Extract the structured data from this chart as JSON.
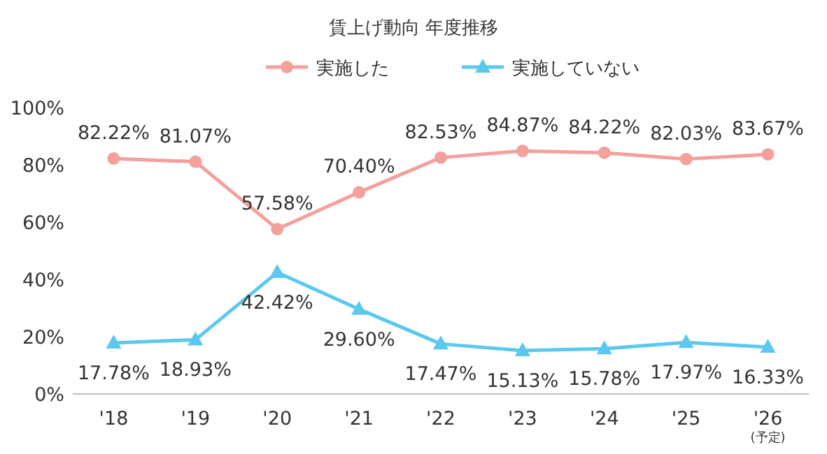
{
  "chart_data": {
    "type": "line",
    "title": "賃上げ動向 年度推移",
    "categories": [
      "'18",
      "'19",
      "'20",
      "'21",
      "'22",
      "'23",
      "'24",
      "'25",
      "'26\n(予定)"
    ],
    "series": [
      {
        "name": "実施した",
        "color": "#f4a09c",
        "marker": "circle",
        "values": [
          82.22,
          81.07,
          57.58,
          70.4,
          82.53,
          84.87,
          84.22,
          82.03,
          83.67
        ],
        "value_labels": [
          "82.22%",
          "81.07%",
          "57.58%",
          "70.40%",
          "82.53%",
          "84.87%",
          "84.22%",
          "82.03%",
          "83.67%"
        ]
      },
      {
        "name": "実施していない",
        "color": "#5bc8f0",
        "marker": "triangle",
        "values": [
          17.78,
          18.93,
          42.42,
          29.6,
          17.47,
          15.13,
          15.78,
          17.97,
          16.33
        ],
        "value_labels": [
          "17.78%",
          "18.93%",
          "42.42%",
          "29.60%",
          "17.47%",
          "15.13%",
          "15.78%",
          "17.97%",
          "16.33%"
        ]
      }
    ],
    "ylim": [
      0,
      100
    ],
    "yticks": [
      {
        "value": 0,
        "label": "0%"
      },
      {
        "value": 20,
        "label": "20%"
      },
      {
        "value": 40,
        "label": "40%"
      },
      {
        "value": 60,
        "label": "60%"
      },
      {
        "value": 80,
        "label": "80%"
      },
      {
        "value": 100,
        "label": "100%"
      }
    ],
    "legend": "top",
    "grid": false
  }
}
